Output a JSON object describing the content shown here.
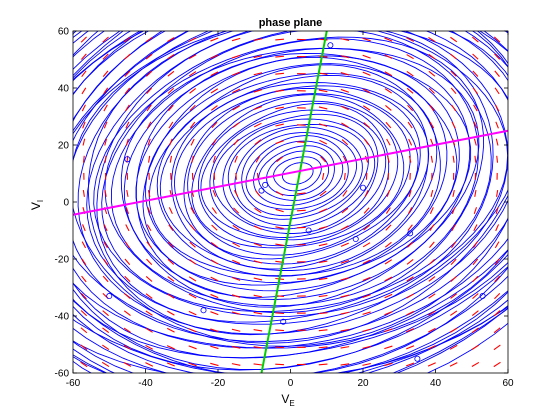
{
  "chart_data": {
    "type": "line",
    "title": "phase plane",
    "xlabel": "V",
    "xlabel_sub": "E",
    "ylabel": "V",
    "ylabel_sub": "I",
    "xlim": [
      -60,
      60
    ],
    "ylim": [
      -60,
      60
    ],
    "xticks": [
      -60,
      -40,
      -20,
      0,
      20,
      40,
      60
    ],
    "yticks": [
      -60,
      -40,
      -20,
      0,
      20,
      40,
      60
    ],
    "grid": false,
    "series": [
      {
        "kind": "trajectories",
        "color": "#0000ff",
        "center": [
          2,
          10
        ],
        "semi_axes_min": [
          4.5,
          3.5
        ],
        "semi_axes_max": [
          92,
          77
        ],
        "rotation_deg": 32,
        "ring_count": 55
      },
      {
        "kind": "nullcline",
        "color": "#00d000",
        "points": [
          [
            -8,
            -60
          ],
          [
            10,
            60
          ]
        ]
      },
      {
        "kind": "nullcline",
        "color": "#ff00ff",
        "points": [
          [
            -60,
            -4.5
          ],
          [
            60,
            25
          ]
        ]
      },
      {
        "kind": "vector-field",
        "color": "#ff0000",
        "grid_step": 6
      },
      {
        "kind": "initial-points",
        "color": "#0000ff",
        "points": [
          [
            11,
            55
          ],
          [
            -45,
            15
          ],
          [
            -7,
            6
          ],
          [
            -8,
            4
          ],
          [
            5,
            -10
          ],
          [
            18,
            -13
          ],
          [
            33,
            -11
          ],
          [
            -50,
            -33
          ],
          [
            -24,
            -38
          ],
          [
            -2,
            -42
          ],
          [
            53,
            -33
          ],
          [
            35,
            -55
          ],
          [
            20,
            5
          ]
        ]
      }
    ]
  }
}
